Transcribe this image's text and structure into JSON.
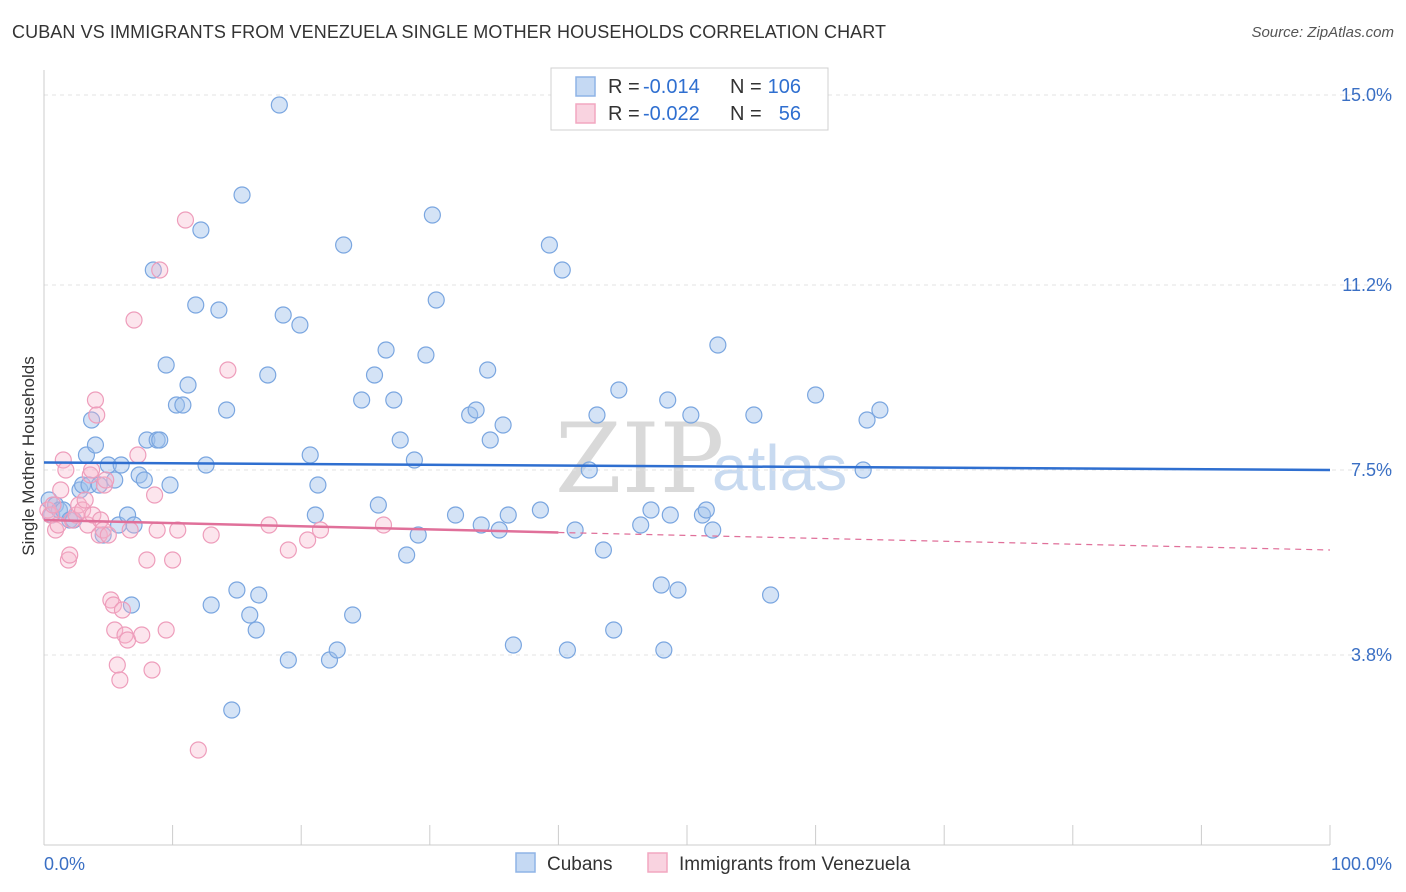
{
  "title": "CUBAN VS IMMIGRANTS FROM VENEZUELA SINGLE MOTHER HOUSEHOLDS CORRELATION CHART",
  "source": "Source: ZipAtlas.com",
  "colors": {
    "cubans": "#8fb4e6",
    "cubans_line": "#2f6fd0",
    "venezuela": "#f2a7c1",
    "venezuela_line": "#e0709a",
    "tick_text": "#3a6fc4"
  },
  "legend": {
    "rows": [
      {
        "r_label": "R =",
        "r_value": "-0.014",
        "n_label": "N =",
        "n_value": "106"
      },
      {
        "r_label": "R =",
        "r_value": "-0.022",
        "n_label": "N =",
        "n_value": "56"
      }
    ]
  },
  "watermark": {
    "part1": "ZIP",
    "part2": "atlas"
  },
  "chart_data": {
    "type": "scatter",
    "xlabel": "",
    "ylabel": "Single Mother Households",
    "xlim": [
      0,
      100
    ],
    "ylim": [
      0,
      15.5
    ],
    "x_tick_labels": [
      "0.0%",
      "100.0%"
    ],
    "y_ticks": [
      3.8,
      7.5,
      11.2,
      15.0
    ],
    "y_tick_labels": [
      "3.8%",
      "7.5%",
      "11.2%",
      "15.0%"
    ],
    "grid": "horizontal dashed",
    "legend_position": "top-center and bottom",
    "series": [
      {
        "name": "Cubans",
        "trend": {
          "x0": 0,
          "y0": 7.65,
          "x1": 100,
          "y1": 7.5
        },
        "points": [
          [
            0.4,
            6.9
          ],
          [
            0.6,
            6.6
          ],
          [
            0.9,
            6.8
          ],
          [
            1.2,
            6.7
          ],
          [
            1.5,
            6.7
          ],
          [
            2.0,
            6.5
          ],
          [
            2.3,
            6.5
          ],
          [
            2.8,
            7.1
          ],
          [
            3.0,
            7.2
          ],
          [
            3.3,
            7.8
          ],
          [
            3.5,
            7.2
          ],
          [
            3.7,
            8.5
          ],
          [
            4.0,
            8.0
          ],
          [
            4.3,
            7.2
          ],
          [
            4.6,
            6.2
          ],
          [
            5.0,
            7.6
          ],
          [
            5.5,
            7.3
          ],
          [
            5.8,
            6.4
          ],
          [
            6.0,
            7.6
          ],
          [
            6.5,
            6.6
          ],
          [
            6.8,
            4.8
          ],
          [
            7.0,
            6.4
          ],
          [
            7.4,
            7.4
          ],
          [
            7.8,
            7.3
          ],
          [
            8.0,
            8.1
          ],
          [
            8.5,
            11.5
          ],
          [
            8.8,
            8.1
          ],
          [
            9.0,
            8.1
          ],
          [
            9.5,
            9.6
          ],
          [
            9.8,
            7.2
          ],
          [
            10.3,
            8.8
          ],
          [
            10.8,
            8.8
          ],
          [
            11.2,
            9.2
          ],
          [
            11.8,
            10.8
          ],
          [
            12.2,
            12.3
          ],
          [
            12.6,
            7.6
          ],
          [
            13.0,
            4.8
          ],
          [
            13.6,
            10.7
          ],
          [
            14.2,
            8.7
          ],
          [
            14.6,
            2.7
          ],
          [
            15.0,
            5.1
          ],
          [
            15.4,
            13.0
          ],
          [
            16.0,
            4.6
          ],
          [
            16.5,
            4.3
          ],
          [
            16.7,
            5.0
          ],
          [
            17.4,
            9.4
          ],
          [
            18.3,
            14.8
          ],
          [
            18.6,
            10.6
          ],
          [
            19.0,
            3.7
          ],
          [
            19.9,
            10.4
          ],
          [
            20.7,
            7.8
          ],
          [
            21.1,
            6.6
          ],
          [
            21.3,
            7.2
          ],
          [
            22.2,
            3.7
          ],
          [
            22.8,
            3.9
          ],
          [
            23.3,
            12.0
          ],
          [
            24.0,
            4.6
          ],
          [
            24.7,
            8.9
          ],
          [
            25.7,
            9.4
          ],
          [
            26.0,
            6.8
          ],
          [
            26.6,
            9.9
          ],
          [
            27.2,
            8.9
          ],
          [
            27.7,
            8.1
          ],
          [
            28.2,
            5.8
          ],
          [
            28.8,
            7.7
          ],
          [
            29.1,
            6.2
          ],
          [
            29.7,
            9.8
          ],
          [
            30.2,
            12.6
          ],
          [
            30.5,
            10.9
          ],
          [
            32.0,
            6.6
          ],
          [
            33.1,
            8.6
          ],
          [
            33.6,
            8.7
          ],
          [
            34.0,
            6.4
          ],
          [
            34.5,
            9.5
          ],
          [
            34.7,
            8.1
          ],
          [
            35.4,
            6.3
          ],
          [
            35.7,
            8.4
          ],
          [
            36.1,
            6.6
          ],
          [
            36.5,
            4.0
          ],
          [
            38.6,
            6.7
          ],
          [
            39.3,
            12.0
          ],
          [
            40.3,
            11.5
          ],
          [
            40.7,
            3.9
          ],
          [
            41.3,
            6.3
          ],
          [
            42.4,
            7.5
          ],
          [
            43.0,
            8.6
          ],
          [
            43.5,
            5.9
          ],
          [
            44.3,
            4.3
          ],
          [
            44.7,
            9.1
          ],
          [
            46.4,
            6.4
          ],
          [
            47.2,
            6.7
          ],
          [
            48.0,
            5.2
          ],
          [
            48.2,
            3.9
          ],
          [
            48.5,
            8.9
          ],
          [
            48.7,
            6.6
          ],
          [
            49.3,
            5.1
          ],
          [
            50.3,
            8.6
          ],
          [
            51.2,
            6.6
          ],
          [
            51.5,
            6.7
          ],
          [
            52.0,
            6.3
          ],
          [
            52.4,
            10.0
          ],
          [
            55.2,
            8.6
          ],
          [
            56.5,
            5.0
          ],
          [
            60.0,
            9.0
          ],
          [
            63.7,
            7.5
          ],
          [
            64.0,
            8.5
          ],
          [
            65.0,
            8.7
          ]
        ]
      },
      {
        "name": "Immigrants from Venezuela",
        "trend": {
          "x0": 0,
          "y0": 6.5,
          "x1": 40,
          "y1": 6.25
        },
        "trend_dashed": {
          "x0": 40,
          "y0": 6.25,
          "x1": 100,
          "y1": 5.9
        },
        "points": [
          [
            0.3,
            6.7
          ],
          [
            0.5,
            6.6
          ],
          [
            0.7,
            6.8
          ],
          [
            0.9,
            6.3
          ],
          [
            1.1,
            6.4
          ],
          [
            1.3,
            7.1
          ],
          [
            1.5,
            7.7
          ],
          [
            1.7,
            7.5
          ],
          [
            1.9,
            5.7
          ],
          [
            2.0,
            5.8
          ],
          [
            2.2,
            6.5
          ],
          [
            2.5,
            6.6
          ],
          [
            2.7,
            6.8
          ],
          [
            3.0,
            6.7
          ],
          [
            3.2,
            6.9
          ],
          [
            3.4,
            6.4
          ],
          [
            3.6,
            7.4
          ],
          [
            3.7,
            7.5
          ],
          [
            3.8,
            6.6
          ],
          [
            4.0,
            8.9
          ],
          [
            4.1,
            8.6
          ],
          [
            4.3,
            6.2
          ],
          [
            4.4,
            6.5
          ],
          [
            4.6,
            6.3
          ],
          [
            4.7,
            7.2
          ],
          [
            4.8,
            7.3
          ],
          [
            5.0,
            6.2
          ],
          [
            5.2,
            4.9
          ],
          [
            5.4,
            4.8
          ],
          [
            5.5,
            4.3
          ],
          [
            5.7,
            3.6
          ],
          [
            5.9,
            3.3
          ],
          [
            6.1,
            4.7
          ],
          [
            6.3,
            4.2
          ],
          [
            6.5,
            4.1
          ],
          [
            6.7,
            6.3
          ],
          [
            7.0,
            10.5
          ],
          [
            7.3,
            7.8
          ],
          [
            7.6,
            4.2
          ],
          [
            8.0,
            5.7
          ],
          [
            8.4,
            3.5
          ],
          [
            8.6,
            7.0
          ],
          [
            8.8,
            6.3
          ],
          [
            9.0,
            11.5
          ],
          [
            9.5,
            4.3
          ],
          [
            10.0,
            5.7
          ],
          [
            10.4,
            6.3
          ],
          [
            11.0,
            12.5
          ],
          [
            12.0,
            1.9
          ],
          [
            13.0,
            6.2
          ],
          [
            14.3,
            9.5
          ],
          [
            17.5,
            6.4
          ],
          [
            19.0,
            5.9
          ],
          [
            20.5,
            6.1
          ],
          [
            21.5,
            6.3
          ],
          [
            26.4,
            6.4
          ]
        ]
      }
    ]
  },
  "bottom_legend": {
    "cubans": "Cubans",
    "venezuela": "Immigrants from Venezuela"
  }
}
